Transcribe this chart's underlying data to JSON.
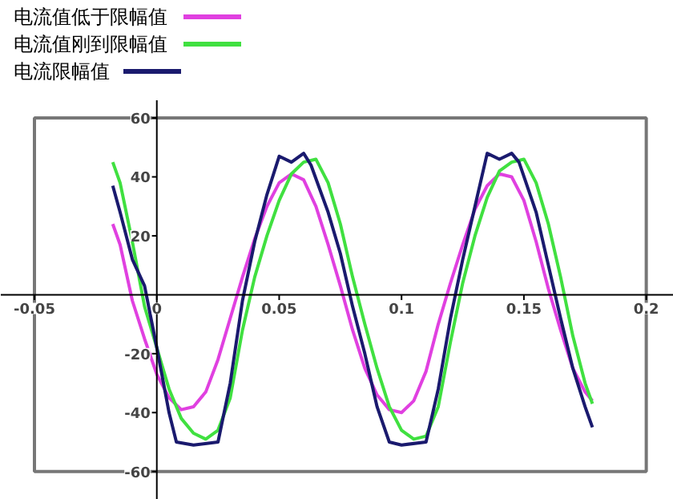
{
  "chart_data": {
    "type": "line",
    "xlim": [
      -0.05,
      0.2
    ],
    "ylim": [
      -60,
      60
    ],
    "xticks": [
      -0.05,
      0,
      0.05,
      0.1,
      0.15,
      0.2
    ],
    "yticks": [
      -60,
      -40,
      -20,
      20,
      40,
      60
    ],
    "grid": false,
    "legend": "top left",
    "marker": "none",
    "line_style": "solid",
    "series": [
      {
        "name": "电流值低于限幅值",
        "color": "#e040e0",
        "x": [
          -0.018,
          -0.015,
          -0.01,
          -0.005,
          0,
          0.005,
          0.01,
          0.015,
          0.02,
          0.025,
          0.03,
          0.035,
          0.04,
          0.045,
          0.05,
          0.055,
          0.06,
          0.065,
          0.07,
          0.075,
          0.08,
          0.085,
          0.09,
          0.095,
          0.1,
          0.105,
          0.11,
          0.115,
          0.12,
          0.125,
          0.13,
          0.135,
          0.14,
          0.145,
          0.15,
          0.155,
          0.16,
          0.165,
          0.17,
          0.175,
          0.178
        ],
        "values": [
          24,
          17,
          -2,
          -15,
          -27,
          -35,
          -39,
          -38,
          -33,
          -22,
          -8,
          6,
          19,
          30,
          38,
          41,
          39,
          30,
          17,
          3,
          -12,
          -25,
          -34,
          -39,
          -40,
          -36,
          -26,
          -10,
          4,
          17,
          29,
          37,
          41,
          40,
          32,
          18,
          2,
          -12,
          -25,
          -33,
          -36
        ]
      },
      {
        "name": "电流值刚到限幅值",
        "color": "#40e040",
        "x": [
          -0.018,
          -0.015,
          -0.01,
          -0.005,
          0,
          0.005,
          0.01,
          0.015,
          0.02,
          0.025,
          0.03,
          0.035,
          0.04,
          0.045,
          0.05,
          0.055,
          0.06,
          0.065,
          0.07,
          0.075,
          0.08,
          0.085,
          0.09,
          0.095,
          0.1,
          0.105,
          0.11,
          0.115,
          0.12,
          0.125,
          0.13,
          0.135,
          0.14,
          0.145,
          0.15,
          0.155,
          0.16,
          0.165,
          0.17,
          0.175,
          0.178
        ],
        "values": [
          45,
          38,
          18,
          -4,
          -18,
          -32,
          -42,
          -47,
          -49,
          -46,
          -35,
          -12,
          6,
          20,
          32,
          41,
          45,
          46,
          38,
          24,
          6,
          -10,
          -25,
          -38,
          -46,
          -49,
          -48,
          -38,
          -16,
          4,
          20,
          33,
          42,
          45,
          46,
          38,
          24,
          6,
          -14,
          -30,
          -37
        ]
      },
      {
        "name": "电流限幅值",
        "color": "#1a1a6e",
        "x": [
          -0.018,
          -0.015,
          -0.01,
          -0.005,
          0,
          0.005,
          0.008,
          0.015,
          0.025,
          0.03,
          0.035,
          0.04,
          0.045,
          0.05,
          0.055,
          0.06,
          0.063,
          0.07,
          0.075,
          0.08,
          0.085,
          0.09,
          0.095,
          0.1,
          0.11,
          0.115,
          0.12,
          0.125,
          0.13,
          0.135,
          0.14,
          0.145,
          0.148,
          0.155,
          0.16,
          0.165,
          0.17,
          0.175,
          0.178
        ],
        "values": [
          37,
          28,
          12,
          3,
          -18,
          -40,
          -50,
          -51,
          -50,
          -30,
          -2,
          18,
          34,
          47,
          45,
          48,
          44,
          28,
          14,
          -4,
          -20,
          -38,
          -50,
          -51,
          -50,
          -32,
          -8,
          12,
          30,
          48,
          46,
          48,
          45,
          28,
          10,
          -8,
          -25,
          -38,
          -45
        ]
      }
    ]
  }
}
